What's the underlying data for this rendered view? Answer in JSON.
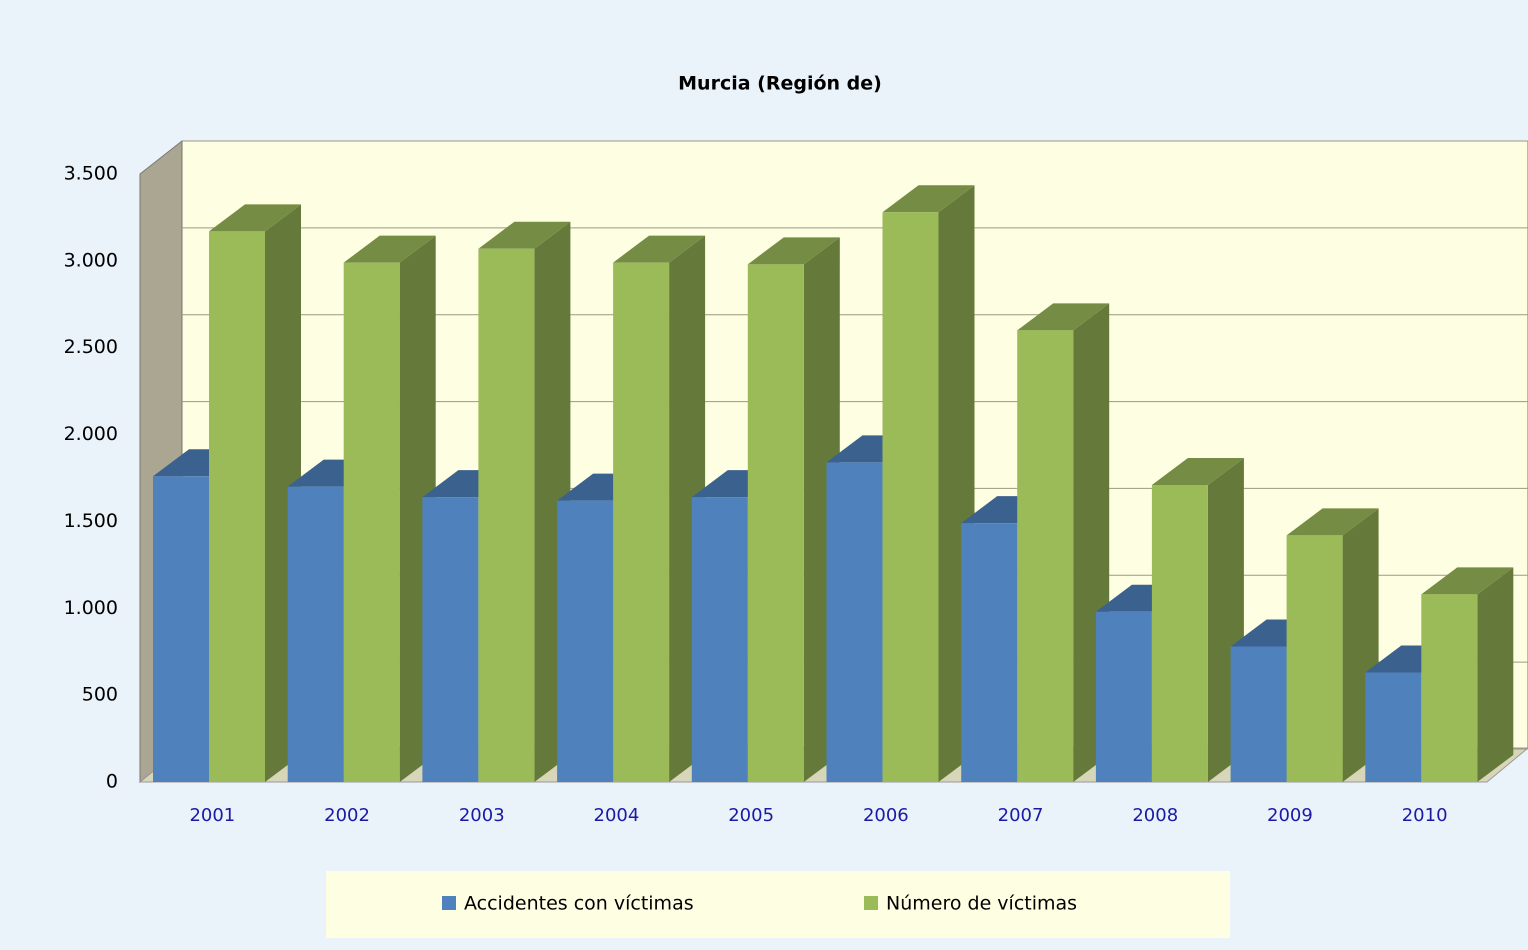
{
  "chart_data": {
    "type": "bar3d",
    "title": "Murcia (Región de)",
    "categories": [
      "2001",
      "2002",
      "2003",
      "2004",
      "2005",
      "2006",
      "2007",
      "2008",
      "2009",
      "2010"
    ],
    "series": [
      {
        "name": "Accidentes con víctimas",
        "color": "#4f81bd",
        "values": [
          1760,
          1700,
          1640,
          1620,
          1640,
          1840,
          1490,
          980,
          780,
          630
        ]
      },
      {
        "name": "Número de víctimas",
        "color": "#9bbb59",
        "values": [
          3170,
          2990,
          3070,
          2990,
          2980,
          3280,
          2600,
          1710,
          1420,
          1080
        ]
      }
    ],
    "ylim": [
      0,
      3500
    ],
    "yticks": [
      0,
      500,
      {
        "value": 1000,
        "label": "1.000"
      },
      {
        "value": 1500,
        "label": "1.500"
      },
      {
        "value": 2000,
        "label": "2.000"
      },
      {
        "value": 2500,
        "label": "2.500"
      },
      {
        "value": 3000,
        "label": "3.000"
      },
      {
        "value": 3500,
        "label": "3.500"
      }
    ],
    "grid": true,
    "legend": "bottom"
  }
}
